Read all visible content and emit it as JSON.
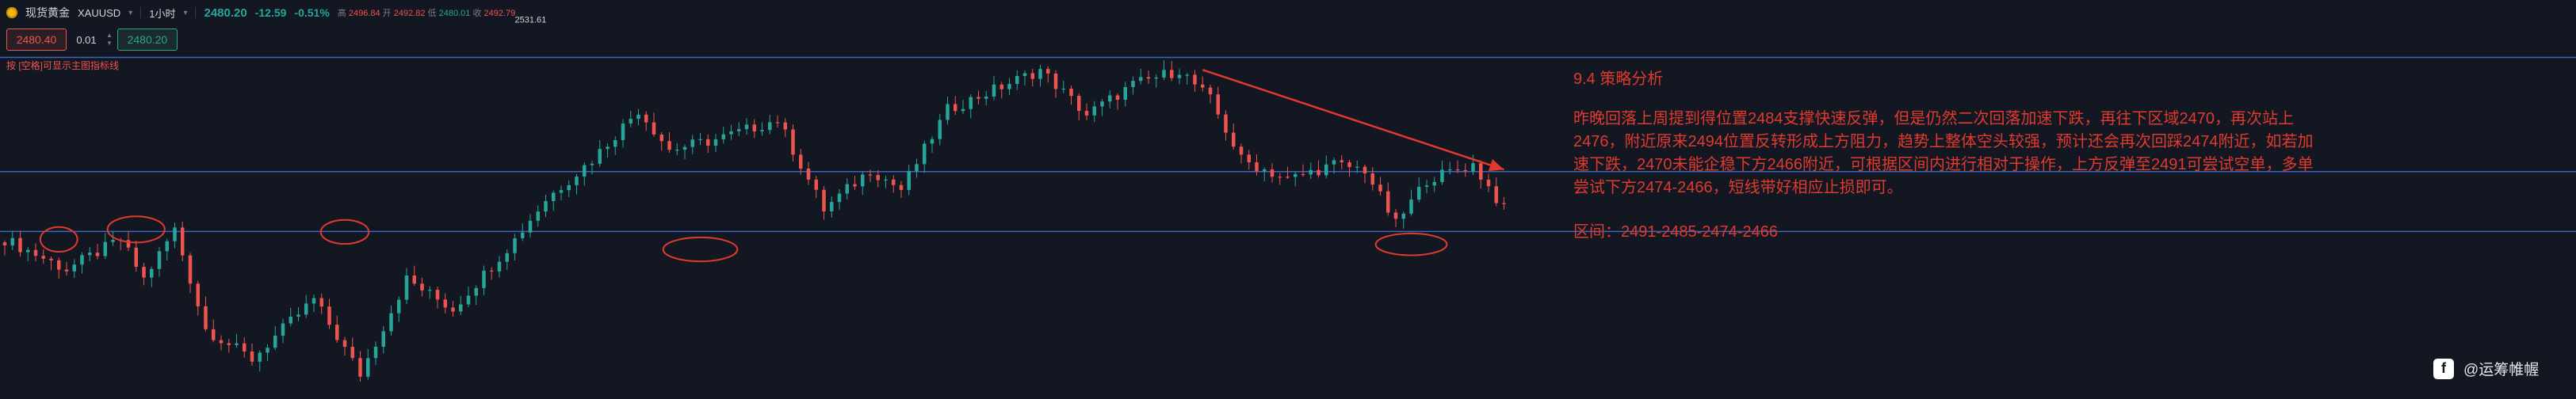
{
  "header": {
    "symbol_name": "现货黄金",
    "symbol_ticker": "XAUUSD",
    "timeframe": "1小时",
    "last_price": "2480.20",
    "change": "-12.59",
    "change_pct": "-0.51%",
    "ohlc": [
      {
        "label": "高",
        "value": "2496.84"
      },
      {
        "label": "开",
        "value": "2492.82"
      },
      {
        "label": "低",
        "value": "2480.01"
      },
      {
        "label": "收",
        "value": "2492.79"
      }
    ]
  },
  "trade": {
    "bid": "2480.40",
    "quantity": "0.01",
    "ask": "2480.20"
  },
  "note": "按 [空格]可显示主图指标线",
  "analysis": {
    "title": "9.4  策略分析",
    "body": "昨晚回落上周提到得位置2484支撑快速反弹，但是仍然二次回落加速下跌，再往下区域2470，再次站上2476，附近原来2494位置反转形成上方阻力，趋势上整体空头较强，预计还会再次回踩2474附近，如若加速下跌，2470未能企稳下方2466附近，可根据区间内进行相对于操作，上方反弹至2491可尝试空单，多单尝试下方2474-2466，短线带好相应止损即可。",
    "range": "区间：2491-2485-2474-2466"
  },
  "watermark": "@运筹帷幄",
  "colors": {
    "background": "#131722",
    "up": "#26a69a",
    "down": "#ef5350",
    "level_line": "#3d64b8",
    "annotation": "#e03a2e"
  },
  "chart_data": {
    "type": "candlestick",
    "x": "1-hour bars",
    "ylim": [
      2458,
      2538
    ],
    "high_label": "2531.61",
    "levels": [
      2526.5,
      2503.6,
      2491.6
    ],
    "trend_line": {
      "from": [
        155,
        2524
      ],
      "to": [
        194,
        2504
      ]
    },
    "anchors": [
      [
        0,
        2490
      ],
      [
        8,
        2484
      ],
      [
        15,
        2490
      ],
      [
        18,
        2482
      ],
      [
        22,
        2492
      ],
      [
        26,
        2472
      ],
      [
        32,
        2466
      ],
      [
        40,
        2478
      ],
      [
        46,
        2463
      ],
      [
        52,
        2482
      ],
      [
        58,
        2476
      ],
      [
        66,
        2490
      ],
      [
        70,
        2498
      ],
      [
        76,
        2506
      ],
      [
        82,
        2516
      ],
      [
        86,
        2508
      ],
      [
        92,
        2510
      ],
      [
        100,
        2514
      ],
      [
        106,
        2496
      ],
      [
        112,
        2504
      ],
      [
        116,
        2500
      ],
      [
        122,
        2516
      ],
      [
        128,
        2520
      ],
      [
        134,
        2524
      ],
      [
        140,
        2515
      ],
      [
        146,
        2521
      ],
      [
        152,
        2524
      ],
      [
        156,
        2518
      ],
      [
        160,
        2506
      ],
      [
        166,
        2502
      ],
      [
        172,
        2505
      ],
      [
        176,
        2504
      ],
      [
        180,
        2493
      ],
      [
        184,
        2502
      ],
      [
        190,
        2505
      ],
      [
        194,
        2496
      ]
    ]
  }
}
